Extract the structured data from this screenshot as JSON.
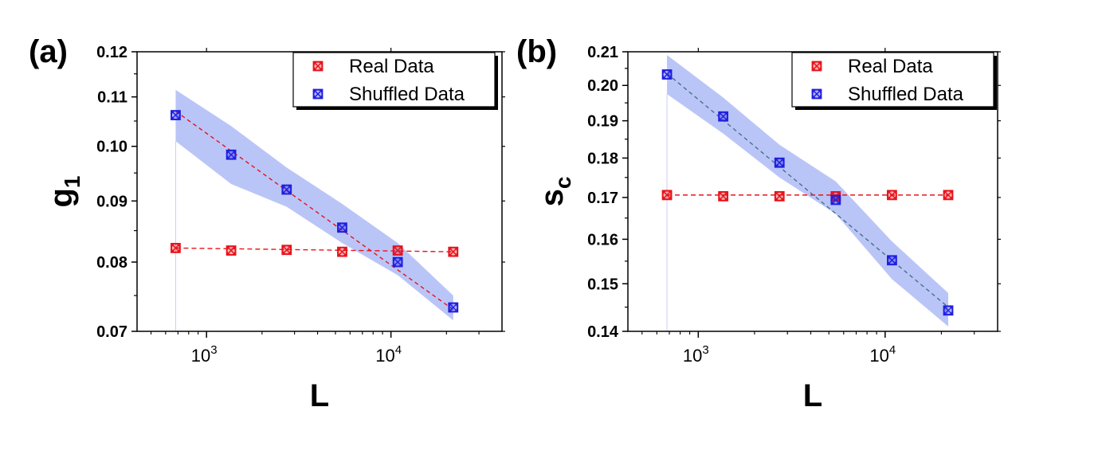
{
  "chart_data": [
    {
      "type": "scatter",
      "panel_label": "(a)",
      "xlabel": "L",
      "ylabel": "g",
      "ylabel_sub": "1",
      "x_scale": "log",
      "y_scale": "log",
      "xlim": [
        420,
        40000
      ],
      "ylim": [
        0.07,
        0.12
      ],
      "x_ticks": [
        1000,
        10000
      ],
      "x_tick_labels": [
        {
          "base": "10",
          "exp": "3"
        },
        {
          "base": "10",
          "exp": "4"
        }
      ],
      "y_ticks": [
        0.07,
        0.08,
        0.09,
        0.1,
        0.11,
        0.12
      ],
      "y_tick_labels": [
        "0.07",
        "0.08",
        "0.09",
        "0.10",
        "0.11",
        "0.12"
      ],
      "legend": "top-right",
      "series": [
        {
          "name": "Real Data",
          "color": "#e8131b",
          "x": [
            680,
            1360,
            2720,
            5440,
            10880,
            21760
          ],
          "y": [
            0.0822,
            0.0818,
            0.0819,
            0.0816,
            0.0818,
            0.0816
          ],
          "fit": [
            0.0822,
            0.0816
          ]
        },
        {
          "name": "Shuffled Data",
          "color": "#1f1fe0",
          "x": [
            680,
            1360,
            2720,
            5440,
            10880,
            21760
          ],
          "y": [
            0.1062,
            0.0984,
            0.092,
            0.0855,
            0.08,
            0.0733
          ],
          "fit": [
            0.107,
            0.073
          ],
          "band_lower": [
            0.101,
            0.093,
            0.089,
            0.083,
            0.078,
            0.0715
          ],
          "band_upper": [
            0.1115,
            0.104,
            0.096,
            0.0895,
            0.083,
            0.075
          ]
        }
      ]
    },
    {
      "type": "scatter",
      "panel_label": "(b)",
      "xlabel": "L",
      "ylabel": "s",
      "ylabel_sub": "c",
      "x_scale": "log",
      "y_scale": "log",
      "xlim": [
        420,
        40000
      ],
      "ylim": [
        0.14,
        0.21
      ],
      "x_ticks": [
        1000,
        10000
      ],
      "x_tick_labels": [
        {
          "base": "10",
          "exp": "3"
        },
        {
          "base": "10",
          "exp": "4"
        }
      ],
      "y_ticks": [
        0.14,
        0.15,
        0.16,
        0.17,
        0.18,
        0.19,
        0.2,
        0.21
      ],
      "y_tick_labels": [
        "0.14",
        "0.15",
        "0.16",
        "0.17",
        "0.18",
        "0.19",
        "0.20",
        "0.21"
      ],
      "legend": "top-right",
      "series": [
        {
          "name": "Real Data",
          "color": "#e8131b",
          "x": [
            680,
            1360,
            2720,
            5440,
            10880,
            21760
          ],
          "y": [
            0.1706,
            0.1703,
            0.1703,
            0.1703,
            0.1706,
            0.1706
          ],
          "fit": [
            0.1706,
            0.1706
          ]
        },
        {
          "name": "Shuffled Data",
          "color": "#1f1fe0",
          "x": [
            680,
            1360,
            2720,
            5440,
            10880,
            21760
          ],
          "y": [
            0.2032,
            0.1912,
            0.1788,
            0.1694,
            0.1552,
            0.1443
          ],
          "fit": [
            0.2035,
            0.145
          ],
          "band_lower": [
            0.1975,
            0.1865,
            0.175,
            0.166,
            0.151,
            0.141
          ],
          "band_upper": [
            0.209,
            0.1965,
            0.1835,
            0.174,
            0.1595,
            0.148
          ]
        }
      ]
    }
  ],
  "colors": {
    "band": "#a9b7f5",
    "shuffled_fit_a": "#e8131b",
    "shuffled_fit_b": "#4a6f8f",
    "axis": "#000000"
  }
}
